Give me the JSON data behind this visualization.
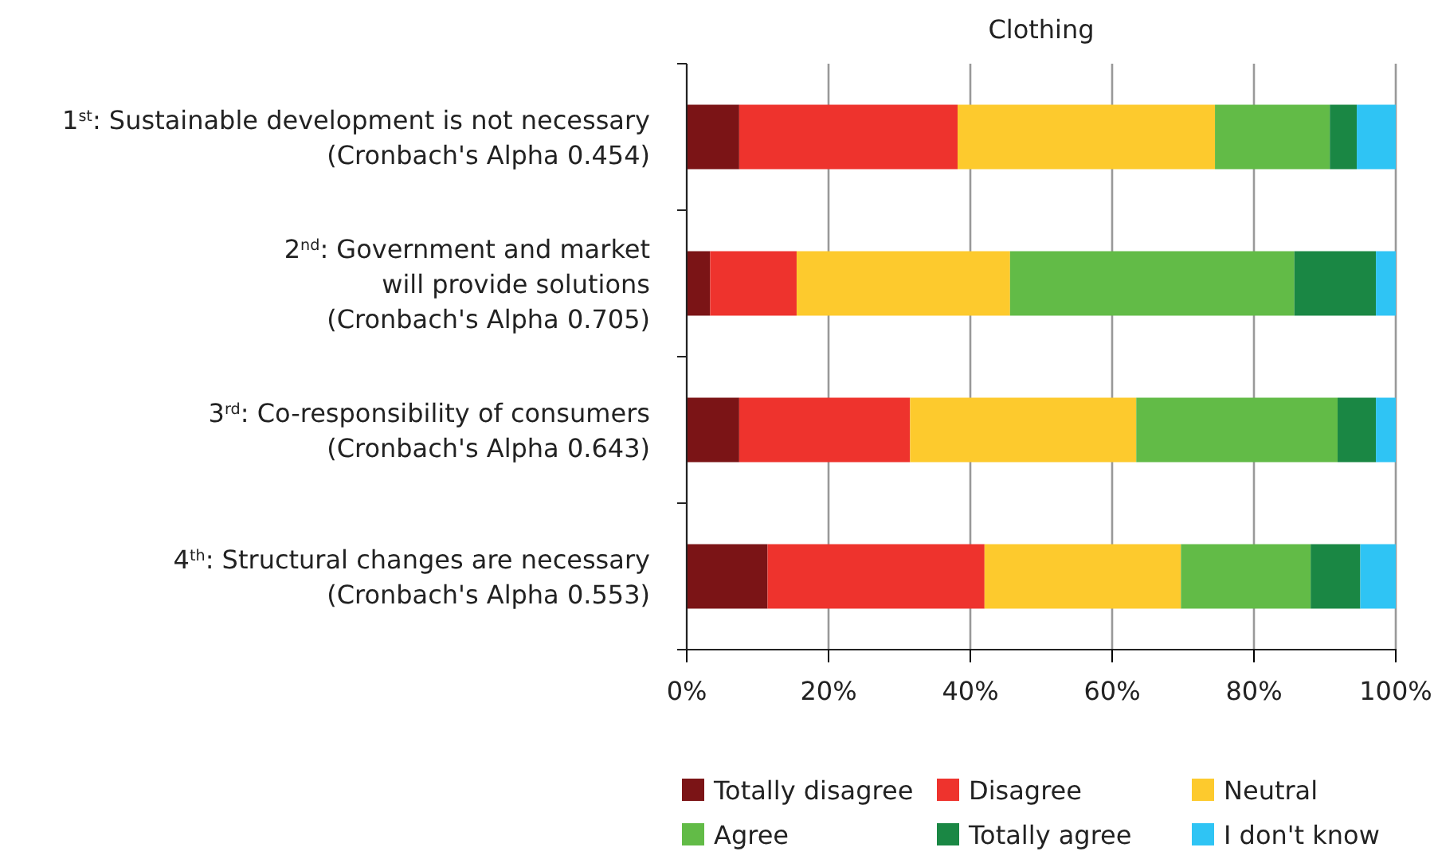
{
  "chart_data": {
    "type": "bar",
    "orientation": "horizontal",
    "stacked": true,
    "title": "Clothing",
    "categories": [
      "1$^{st}$: Sustainable development is not necessary\n(Cronbach's Alpha 0.454)",
      "2$^{nd}$: Government and market\nwill provide solutions\n(Cronbach's Alpha 0.705)",
      "3$^{rd}$: Co-responsibility of consumers\n(Cronbach's Alpha 0.643)",
      "4$^{th}$: Structural changes are necessary\n(Cronbach's Alpha 0.553)"
    ],
    "series": [
      {
        "name": "Totally disagree",
        "color": "#7b1416",
        "values": [
          7.4,
          3.3,
          7.4,
          11.4
        ]
      },
      {
        "name": "Disagree",
        "color": "#ee332d",
        "values": [
          30.8,
          12.2,
          24.1,
          30.6
        ]
      },
      {
        "name": "Neutral",
        "color": "#fdca2d",
        "values": [
          36.3,
          30.1,
          31.9,
          27.7
        ]
      },
      {
        "name": "Agree",
        "color": "#62bb47",
        "values": [
          16.2,
          40.1,
          28.4,
          18.3
        ]
      },
      {
        "name": "Totally agree",
        "color": "#1a8744",
        "values": [
          3.8,
          11.5,
          5.4,
          7.0
        ]
      },
      {
        "name": "I don't know",
        "color": "#2fc4f4",
        "values": [
          5.5,
          2.8,
          2.8,
          5.0
        ]
      }
    ],
    "xlim": [
      0,
      100
    ],
    "xticks": [
      {
        "value": 0,
        "label": "0%"
      },
      {
        "value": 20,
        "label": "20%"
      },
      {
        "value": 40,
        "label": "40%"
      },
      {
        "value": 60,
        "label": "60%"
      },
      {
        "value": 80,
        "label": "80%"
      },
      {
        "value": 100,
        "label": "100%"
      }
    ],
    "grid": "x",
    "legend": "bottom"
  }
}
